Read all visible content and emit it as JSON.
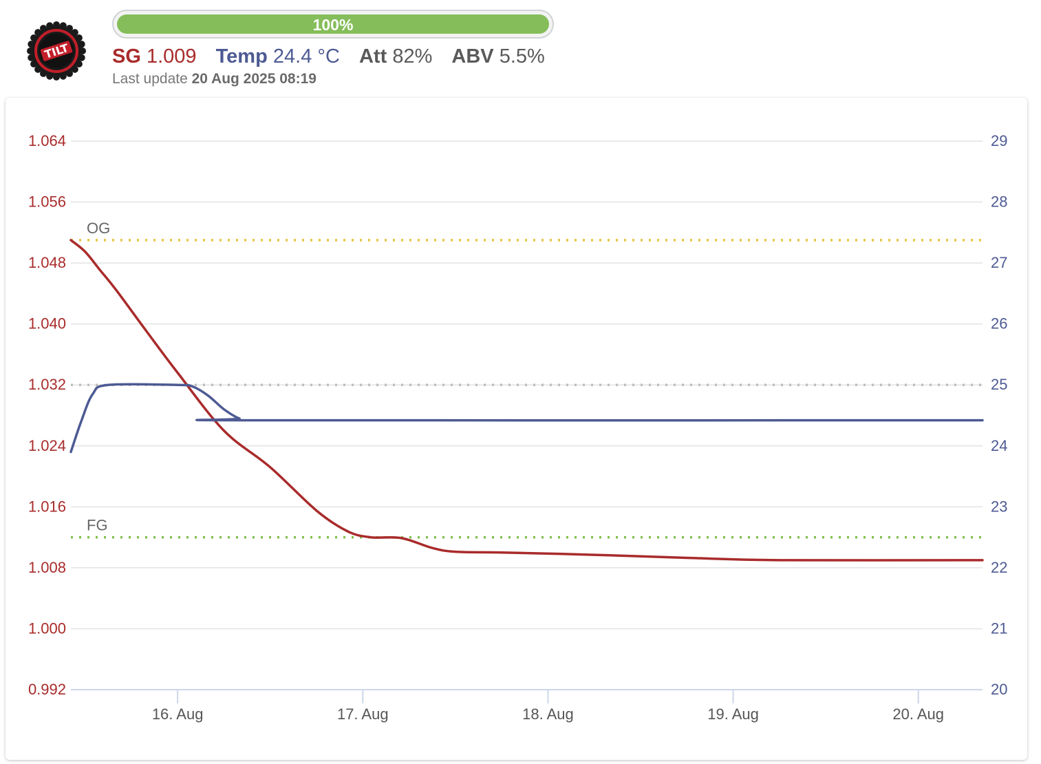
{
  "header": {
    "progress_label": "100%",
    "progress_value": 1.0,
    "sg_label": "SG",
    "sg_value": "1.009",
    "temp_label": "Temp",
    "temp_value": "24.4 °C",
    "att_label": "Att",
    "att_value": "82%",
    "abv_label": "ABV",
    "abv_value": "5.5%",
    "last_update_label": "Last update",
    "last_update_value": "20 Aug 2025 08:19",
    "logo_text": "TILT"
  },
  "colors": {
    "sg": "#a92b2b",
    "temp": "#4d5a93",
    "og_line": "#e8c33c",
    "fg_line": "#7fbf4a",
    "temp_ref_line": "#bdbdbd",
    "progress": "#85bd5a"
  },
  "chart_data": {
    "type": "line",
    "x_axis": {
      "min": "2025-08-15 10:10",
      "max": "2025-08-20 08:19",
      "tick_labels": [
        "16. Aug",
        "17. Aug",
        "18. Aug",
        "19. Aug",
        "20. Aug"
      ]
    },
    "y_left": {
      "range": [
        0.992,
        1.064
      ],
      "tick_labels": [
        "0.992",
        "1.000",
        "1.008",
        "1.016",
        "1.024",
        "1.032",
        "1.040",
        "1.048",
        "1.056",
        "1.064"
      ]
    },
    "y_right": {
      "range": [
        20,
        29
      ],
      "tick_labels": [
        "20",
        "21",
        "22",
        "23",
        "24",
        "25",
        "26",
        "27",
        "28",
        "29"
      ]
    },
    "grid": true,
    "series": [
      {
        "axis": "left",
        "points": [
          [
            "2025-08-15 10:10",
            1.051
          ],
          [
            "2025-08-15 12:00",
            1.0495
          ],
          [
            "2025-08-15 14:00",
            1.047
          ],
          [
            "2025-08-15 16:00",
            1.0445
          ],
          [
            "2025-08-15 20:00",
            1.039
          ],
          [
            "2025-08-16 00:00",
            1.0336
          ],
          [
            "2025-08-16 06:00",
            1.026
          ],
          [
            "2025-08-16 12:00",
            1.0212
          ],
          [
            "2025-08-16 18:00",
            1.0155
          ],
          [
            "2025-08-16 22:00",
            1.0128
          ],
          [
            "2025-08-17 01:00",
            1.012
          ],
          [
            "2025-08-17 05:00",
            1.0119
          ],
          [
            "2025-08-17 09:00",
            1.0106
          ],
          [
            "2025-08-17 12:00",
            1.0101
          ],
          [
            "2025-08-17 18:00",
            1.01
          ],
          [
            "2025-08-18 06:00",
            1.0097
          ],
          [
            "2025-08-18 18:00",
            1.0093
          ],
          [
            "2025-08-19 06:00",
            1.009
          ],
          [
            "2025-08-20 08:19",
            1.009
          ]
        ]
      },
      {
        "axis": "right",
        "points": [
          [
            "2025-08-15 10:10",
            23.9
          ],
          [
            "2025-08-15 11:30",
            24.4
          ],
          [
            "2025-08-15 13:00",
            24.85
          ],
          [
            "2025-08-15 15:00",
            25.0
          ],
          [
            "2025-08-16 00:00",
            25.0
          ],
          [
            "2025-08-16 02:00",
            24.97
          ],
          [
            "2025-08-16 04:00",
            24.82
          ],
          [
            "2025-08-16 06:00",
            24.6
          ],
          [
            "2025-08-16 08:00",
            24.45
          ],
          [
            "2025-08-16 10:00",
            24.42
          ],
          [
            "2025-08-20 08:19",
            24.42
          ]
        ]
      }
    ],
    "reference_lines": [
      {
        "label": "OG",
        "axis": "left",
        "value": 1.051
      },
      {
        "label": "FG",
        "axis": "left",
        "value": 1.012
      },
      {
        "label": "",
        "axis": "right",
        "value": 25
      }
    ]
  }
}
